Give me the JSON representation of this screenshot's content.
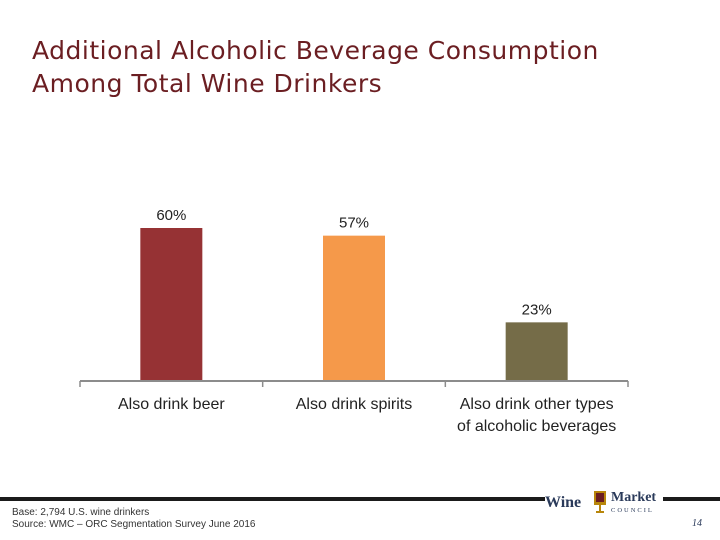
{
  "slide": {
    "title_lines": [
      "Additional Alcoholic Beverage Consumption",
      "Among Total Wine Drinkers"
    ],
    "footnote_lines": [
      "Base: 2,794 U.S. wine drinkers",
      "Source: WMC – ORC Segmentation Survey June 2016"
    ],
    "logo": {
      "word1": "Wine",
      "word2": "Market",
      "word3": "COUNCIL"
    },
    "page_number": "14"
  },
  "chart_data": {
    "type": "bar",
    "categories": [
      [
        "Also drink beer"
      ],
      [
        "Also drink spirits"
      ],
      [
        "Also drink other types",
        "of alcoholic beverages"
      ]
    ],
    "values": [
      60,
      57,
      23
    ],
    "data_labels": [
      "60%",
      "57%",
      "23%"
    ],
    "colors": [
      "#963234",
      "#f5994a",
      "#756c48"
    ],
    "ylim": [
      0,
      100
    ],
    "grid": false,
    "legend": "none"
  }
}
